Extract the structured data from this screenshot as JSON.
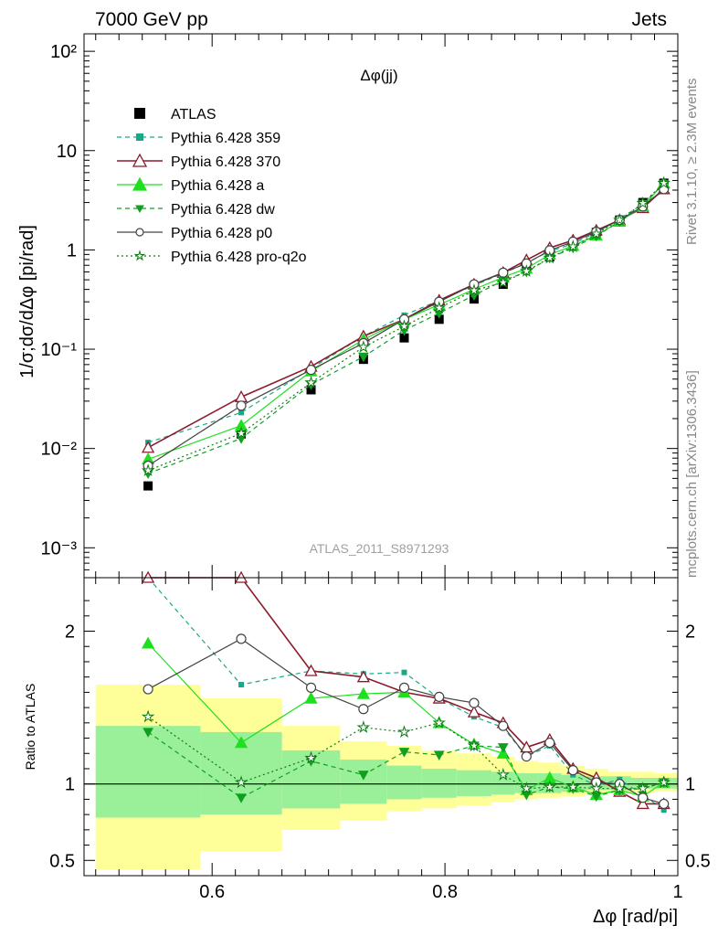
{
  "header": {
    "left": "7000 GeV pp",
    "right": "Jets"
  },
  "side_labels": {
    "top": "Rivet 3.1.10, ≥ 2.3M events",
    "bottom": "mcplots.cern.ch [arXiv:1306.3436]"
  },
  "colors": {
    "atlas": "#000000",
    "p359": "#1aa886",
    "p370": "#8b1a2a",
    "pa": "#1ee01e",
    "pdw": "#10a020",
    "pp0": "#444444",
    "pq2o": "#0e7a14",
    "band_stat": "#99f099",
    "band_tot": "#ffff99"
  },
  "chart_data": [
    {
      "type": "line",
      "title": "Δφ(jj)",
      "watermark": "ATLAS_2011_S8971293",
      "ylabel": "1/σ;dσ/dΔφ [pi/rad]",
      "yscale": "log",
      "ylim": [
        0.0005,
        150
      ],
      "xlim": [
        0.49,
        1.0
      ],
      "ytick_labels": [
        "10⁻³",
        "10⁻²",
        "10⁻¹",
        "1",
        "10",
        "10²"
      ],
      "legend_position": "top-left",
      "x": [
        0.545,
        0.625,
        0.685,
        0.73,
        0.765,
        0.795,
        0.825,
        0.85,
        0.87,
        0.89,
        0.91,
        0.93,
        0.95,
        0.97,
        0.988
      ],
      "series": [
        {
          "name": "ATLAS",
          "key": "atlas",
          "values": [
            0.0042,
            0.014,
            0.039,
            0.079,
            0.13,
            0.2,
            0.32,
            0.45,
            0.64,
            0.85,
            1.1,
            1.5,
            2.0,
            3.0,
            4.7
          ]
        },
        {
          "name": "Pythia 6.428 359",
          "key": "p359",
          "values": [
            0.0115,
            0.023,
            0.064,
            0.135,
            0.22,
            0.31,
            0.44,
            0.58,
            0.74,
            0.97,
            1.15,
            1.5,
            2.05,
            2.9,
            3.9
          ]
        },
        {
          "name": "Pythia 6.428 370",
          "key": "p370",
          "values": [
            0.0102,
            0.033,
            0.067,
            0.135,
            0.2,
            0.31,
            0.45,
            0.59,
            0.79,
            1.05,
            1.25,
            1.57,
            2.0,
            2.65,
            4.1
          ]
        },
        {
          "name": "Pythia 6.428 a",
          "key": "pa",
          "values": [
            0.0078,
            0.017,
            0.06,
            0.125,
            0.2,
            0.28,
            0.4,
            0.53,
            0.65,
            0.9,
            1.1,
            1.4,
            1.93,
            2.75,
            4.7
          ]
        },
        {
          "name": "Pythia 6.428 dw",
          "key": "pdw",
          "values": [
            0.0056,
            0.0126,
            0.044,
            0.084,
            0.155,
            0.23,
            0.35,
            0.49,
            0.6,
            0.83,
            1.05,
            1.38,
            1.93,
            2.9,
            4.6
          ]
        },
        {
          "name": "Pythia 6.428 p0",
          "key": "pp0",
          "values": [
            0.0067,
            0.027,
            0.062,
            0.115,
            0.2,
            0.3,
            0.45,
            0.59,
            0.73,
            0.99,
            1.21,
            1.52,
            2.0,
            2.74,
            4.1
          ]
        },
        {
          "name": "Pythia 6.428 pro-q2o",
          "key": "pq2o",
          "values": [
            0.006,
            0.0142,
            0.046,
            0.105,
            0.17,
            0.26,
            0.39,
            0.47,
            0.61,
            0.83,
            1.08,
            1.45,
            2.0,
            2.95,
            4.7
          ]
        }
      ]
    },
    {
      "type": "line",
      "ylabel": "Ratio to ATLAS",
      "xlabel": "Δφ [rad/pi]",
      "ylim": [
        0.4,
        2.35
      ],
      "xlim": [
        0.49,
        1.0
      ],
      "yticks": [
        0.5,
        1,
        2
      ],
      "ytick_labels": [
        "0.5",
        "1",
        "2"
      ],
      "xticks": [
        0.6,
        0.8,
        1
      ],
      "xtick_labels": [
        "0.6",
        "0.8",
        "1"
      ],
      "bins": [
        0.5,
        0.59,
        0.66,
        0.71,
        0.75,
        0.78,
        0.81,
        0.84,
        0.86,
        0.88,
        0.9,
        0.92,
        0.94,
        0.96,
        0.98,
        1.0
      ],
      "band_stat": [
        [
          0.78,
          1.38
        ],
        [
          0.8,
          1.34
        ],
        [
          0.84,
          1.22
        ],
        [
          0.87,
          1.16
        ],
        [
          0.9,
          1.12
        ],
        [
          0.91,
          1.1
        ],
        [
          0.92,
          1.09
        ],
        [
          0.93,
          1.08
        ],
        [
          0.94,
          1.07
        ],
        [
          0.94,
          1.07
        ],
        [
          0.95,
          1.06
        ],
        [
          0.96,
          1.05
        ],
        [
          0.96,
          1.05
        ],
        [
          0.97,
          1.04
        ],
        [
          0.97,
          1.04
        ]
      ],
      "band_total": [
        [
          0.44,
          1.65
        ],
        [
          0.56,
          1.56
        ],
        [
          0.7,
          1.38
        ],
        [
          0.76,
          1.28
        ],
        [
          0.82,
          1.25
        ],
        [
          0.84,
          1.22
        ],
        [
          0.86,
          1.2
        ],
        [
          0.88,
          1.18
        ],
        [
          0.9,
          1.15
        ],
        [
          0.91,
          1.14
        ],
        [
          0.92,
          1.12
        ],
        [
          0.93,
          1.1
        ],
        [
          0.94,
          1.08
        ],
        [
          0.94,
          1.08
        ],
        [
          0.95,
          1.07
        ]
      ],
      "x": [
        0.545,
        0.625,
        0.685,
        0.73,
        0.765,
        0.795,
        0.825,
        0.85,
        0.87,
        0.89,
        0.91,
        0.93,
        0.95,
        0.97,
        0.988
      ],
      "series": [
        {
          "name": "Pythia 6.428 359",
          "key": "p359",
          "values": [
            2.6,
            1.65,
            1.74,
            1.72,
            1.73,
            1.56,
            1.44,
            1.37,
            1.18,
            1.25,
            1.06,
            0.99,
            1.03,
            0.93,
            0.83
          ]
        },
        {
          "name": "Pythia 6.428 370",
          "key": "p370",
          "values": [
            2.4,
            2.35,
            1.74,
            1.7,
            1.6,
            1.56,
            1.47,
            1.4,
            1.24,
            1.29,
            1.1,
            1.04,
            0.95,
            0.87,
            0.87
          ]
        },
        {
          "name": "Pythia 6.428 a",
          "key": "pa",
          "values": [
            1.92,
            1.27,
            1.56,
            1.59,
            1.6,
            1.4,
            1.26,
            1.2,
            0.96,
            1.04,
            0.98,
            0.93,
            0.96,
            0.92,
            1.01
          ]
        },
        {
          "name": "Pythia 6.428 dw",
          "key": "pdw",
          "values": [
            1.34,
            0.91,
            1.15,
            1.06,
            1.21,
            1.19,
            1.25,
            1.24,
            0.93,
            0.98,
            0.97,
            0.92,
            0.96,
            0.97,
            1.01
          ]
        },
        {
          "name": "Pythia 6.428 p0",
          "key": "pp0",
          "values": [
            1.62,
            1.95,
            1.63,
            1.49,
            1.63,
            1.57,
            1.53,
            1.38,
            1.18,
            1.27,
            1.09,
            1.01,
            1.0,
            0.91,
            0.87
          ]
        },
        {
          "name": "Pythia 6.428 pro-q2o",
          "key": "pq2o",
          "values": [
            1.44,
            1.01,
            1.17,
            1.37,
            1.34,
            1.4,
            1.25,
            1.06,
            0.97,
            0.98,
            0.98,
            0.97,
            0.97,
            0.97,
            1.01
          ]
        }
      ]
    }
  ]
}
